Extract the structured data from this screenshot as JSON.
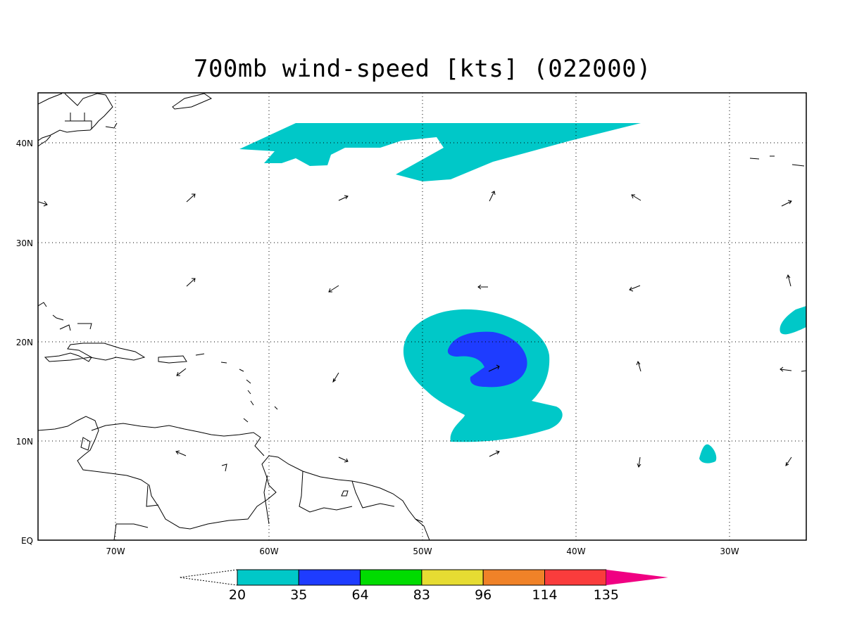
{
  "title": "700mb wind-speed [kts] (022000)",
  "axes": {
    "lon_labels": [
      "70W",
      "60W",
      "50W",
      "40W",
      "30W"
    ],
    "lat_labels": [
      "40N",
      "30N",
      "20N",
      "10N",
      "EQ"
    ],
    "lon_range": [
      -75,
      -25
    ],
    "lat_range": [
      0,
      45
    ],
    "grid": "dotted"
  },
  "colorbar": {
    "labels": [
      "20",
      "35",
      "64",
      "83",
      "96",
      "114",
      "135"
    ],
    "colors": [
      "#00c8c8",
      "#1e3cff",
      "#00dc00",
      "#e6dc32",
      "#f08228",
      "#fa3c3c",
      "#f00082"
    ],
    "open_low_end": true
  },
  "colors": {
    "coast": "#000000",
    "background": "#ffffff"
  },
  "wind_vectors_note": "",
  "map_features": {
    "regions": [
      "Caribbean",
      "Northeast South America",
      "North Atlantic"
    ],
    "shaded_features": [
      "cyclone-core-35kt",
      "cyclone-envelope-20kt",
      "northern-jet-20kt",
      "east-edge-20kt",
      "small-patch-20kt"
    ]
  }
}
